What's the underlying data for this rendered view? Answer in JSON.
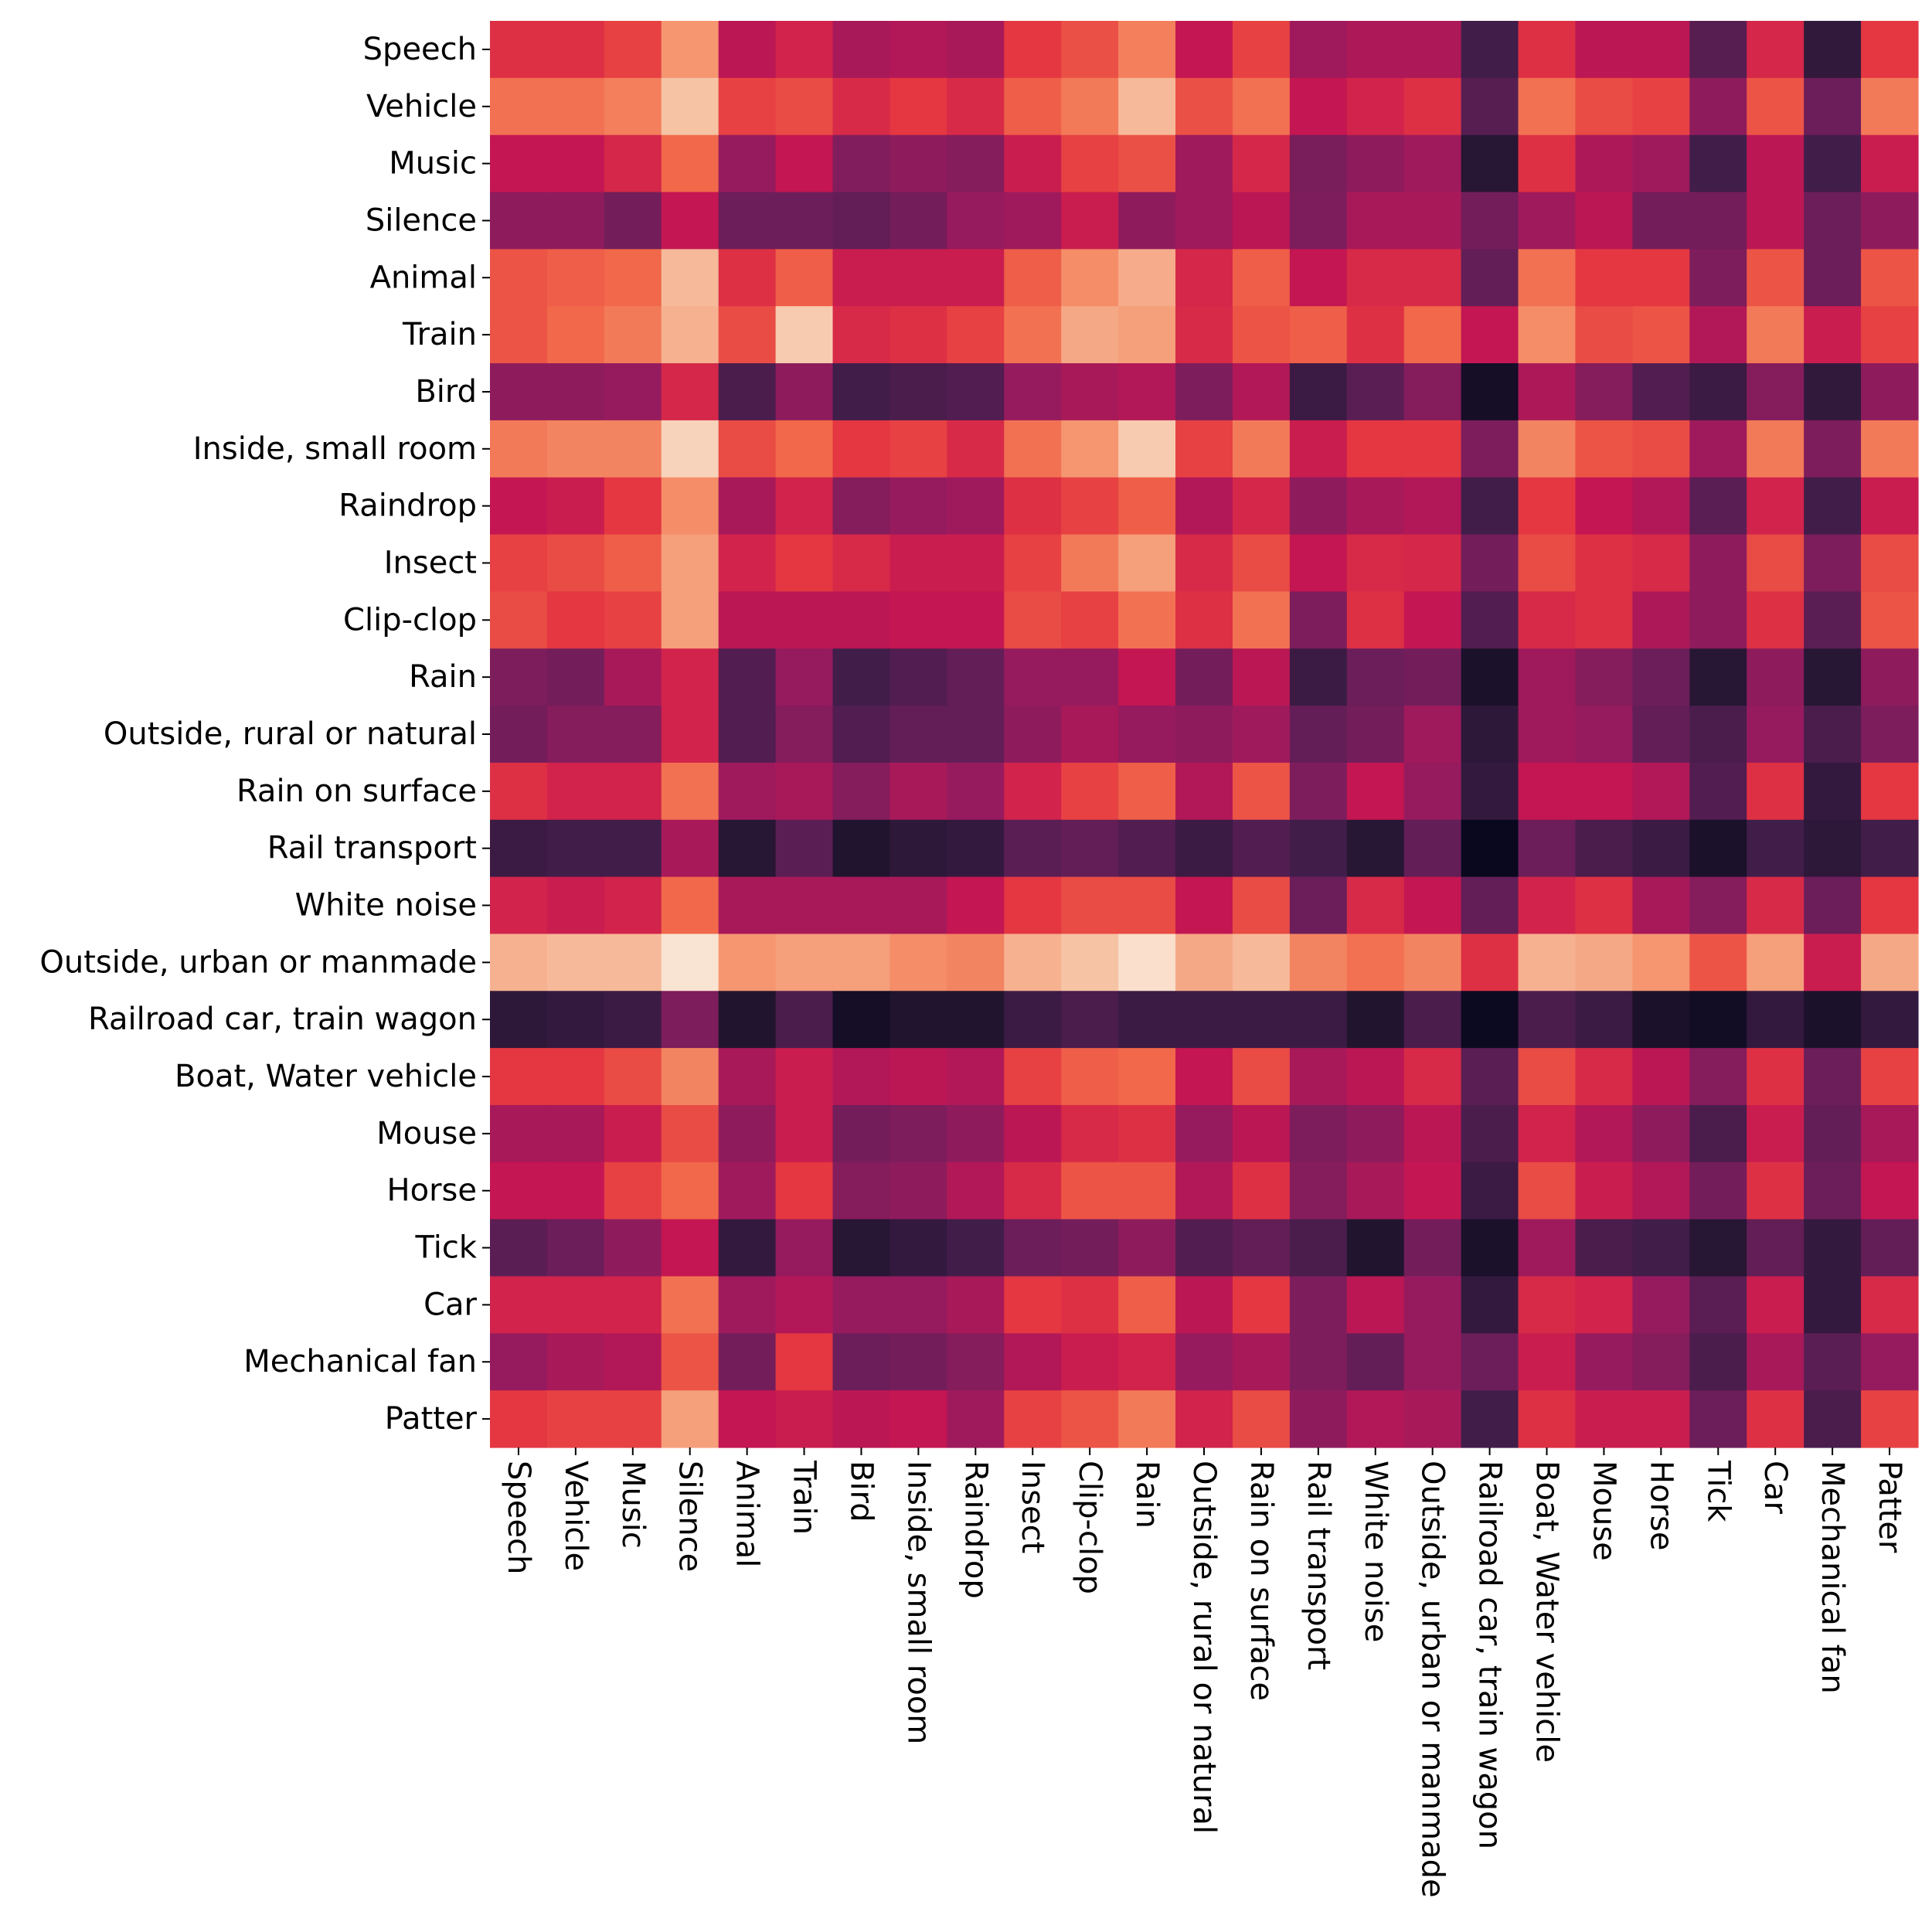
{
  "chart_data": {
    "type": "heatmap",
    "title": "",
    "xlabel": "",
    "ylabel": "",
    "colormap": "rocket",
    "colorbar": false,
    "vmin": 0,
    "vmax": 1,
    "labels": [
      "Speech",
      "Vehicle",
      "Music",
      "Silence",
      "Animal",
      "Train",
      "Bird",
      "Inside, small room",
      "Raindrop",
      "Insect",
      "Clip-clop",
      "Rain",
      "Outside, rural or natural",
      "Rain on surface",
      "Rail transport",
      "White noise",
      "Outside, urban or manmade",
      "Railroad car, train wagon",
      "Boat, Water vehicle",
      "Mouse",
      "Horse",
      "Tick",
      "Car",
      "Mechanical fan",
      "Patter"
    ],
    "values": [
      [
        0.58,
        0.58,
        0.62,
        0.8,
        0.48,
        0.54,
        0.44,
        0.46,
        0.44,
        0.6,
        0.65,
        0.75,
        0.5,
        0.62,
        0.42,
        0.45,
        0.45,
        0.2,
        0.58,
        0.48,
        0.48,
        0.25,
        0.55,
        0.15,
        0.6
      ],
      [
        0.72,
        0.72,
        0.75,
        0.9,
        0.62,
        0.64,
        0.56,
        0.6,
        0.56,
        0.68,
        0.74,
        0.88,
        0.65,
        0.72,
        0.5,
        0.54,
        0.58,
        0.25,
        0.72,
        0.64,
        0.62,
        0.38,
        0.66,
        0.3,
        0.74
      ],
      [
        0.5,
        0.5,
        0.55,
        0.7,
        0.4,
        0.5,
        0.35,
        0.38,
        0.36,
        0.52,
        0.62,
        0.65,
        0.42,
        0.55,
        0.33,
        0.38,
        0.42,
        0.12,
        0.58,
        0.45,
        0.42,
        0.2,
        0.48,
        0.2,
        0.52
      ],
      [
        0.38,
        0.38,
        0.32,
        0.5,
        0.3,
        0.3,
        0.28,
        0.32,
        0.4,
        0.42,
        0.52,
        0.38,
        0.42,
        0.48,
        0.34,
        0.44,
        0.44,
        0.32,
        0.42,
        0.48,
        0.32,
        0.32,
        0.48,
        0.3,
        0.38
      ],
      [
        0.66,
        0.68,
        0.7,
        0.88,
        0.58,
        0.68,
        0.52,
        0.52,
        0.52,
        0.68,
        0.78,
        0.85,
        0.55,
        0.68,
        0.5,
        0.56,
        0.56,
        0.28,
        0.72,
        0.6,
        0.6,
        0.34,
        0.66,
        0.3,
        0.66
      ],
      [
        0.66,
        0.7,
        0.74,
        0.86,
        0.64,
        0.92,
        0.56,
        0.58,
        0.62,
        0.72,
        0.84,
        0.82,
        0.56,
        0.66,
        0.68,
        0.58,
        0.7,
        0.5,
        0.78,
        0.64,
        0.66,
        0.46,
        0.74,
        0.52,
        0.62
      ],
      [
        0.38,
        0.38,
        0.4,
        0.55,
        0.22,
        0.38,
        0.2,
        0.22,
        0.24,
        0.4,
        0.44,
        0.46,
        0.34,
        0.46,
        0.18,
        0.26,
        0.36,
        0.06,
        0.45,
        0.36,
        0.24,
        0.18,
        0.36,
        0.15,
        0.38
      ],
      [
        0.74,
        0.76,
        0.76,
        0.94,
        0.64,
        0.7,
        0.6,
        0.62,
        0.56,
        0.72,
        0.8,
        0.92,
        0.62,
        0.74,
        0.52,
        0.6,
        0.6,
        0.34,
        0.76,
        0.66,
        0.64,
        0.42,
        0.74,
        0.34,
        0.74
      ],
      [
        0.5,
        0.52,
        0.6,
        0.78,
        0.44,
        0.54,
        0.36,
        0.4,
        0.42,
        0.58,
        0.62,
        0.68,
        0.46,
        0.55,
        0.38,
        0.44,
        0.46,
        0.2,
        0.6,
        0.5,
        0.46,
        0.26,
        0.54,
        0.2,
        0.52
      ],
      [
        0.62,
        0.64,
        0.68,
        0.82,
        0.54,
        0.6,
        0.56,
        0.52,
        0.52,
        0.62,
        0.74,
        0.82,
        0.56,
        0.64,
        0.5,
        0.56,
        0.55,
        0.32,
        0.64,
        0.58,
        0.56,
        0.38,
        0.64,
        0.34,
        0.64
      ],
      [
        0.64,
        0.6,
        0.62,
        0.82,
        0.48,
        0.48,
        0.48,
        0.5,
        0.5,
        0.64,
        0.62,
        0.72,
        0.58,
        0.72,
        0.34,
        0.58,
        0.5,
        0.24,
        0.56,
        0.58,
        0.45,
        0.38,
        0.58,
        0.26,
        0.66
      ],
      [
        0.34,
        0.32,
        0.44,
        0.54,
        0.24,
        0.4,
        0.2,
        0.24,
        0.28,
        0.4,
        0.4,
        0.5,
        0.32,
        0.48,
        0.18,
        0.3,
        0.32,
        0.08,
        0.42,
        0.36,
        0.3,
        0.12,
        0.38,
        0.12,
        0.38
      ],
      [
        0.32,
        0.36,
        0.36,
        0.54,
        0.24,
        0.36,
        0.24,
        0.28,
        0.28,
        0.38,
        0.44,
        0.4,
        0.38,
        0.42,
        0.28,
        0.32,
        0.42,
        0.14,
        0.42,
        0.4,
        0.28,
        0.22,
        0.4,
        0.22,
        0.34
      ],
      [
        0.58,
        0.54,
        0.54,
        0.72,
        0.42,
        0.44,
        0.36,
        0.44,
        0.4,
        0.54,
        0.62,
        0.68,
        0.46,
        0.66,
        0.34,
        0.5,
        0.4,
        0.16,
        0.5,
        0.5,
        0.46,
        0.24,
        0.58,
        0.16,
        0.6
      ],
      [
        0.18,
        0.2,
        0.2,
        0.44,
        0.12,
        0.26,
        0.1,
        0.14,
        0.16,
        0.26,
        0.28,
        0.24,
        0.18,
        0.24,
        0.2,
        0.12,
        0.28,
        0.02,
        0.3,
        0.22,
        0.18,
        0.08,
        0.2,
        0.14,
        0.2
      ],
      [
        0.54,
        0.52,
        0.54,
        0.7,
        0.44,
        0.44,
        0.44,
        0.44,
        0.5,
        0.6,
        0.64,
        0.64,
        0.5,
        0.64,
        0.3,
        0.56,
        0.5,
        0.28,
        0.54,
        0.58,
        0.44,
        0.36,
        0.56,
        0.3,
        0.6
      ],
      [
        0.86,
        0.88,
        0.88,
        0.98,
        0.8,
        0.82,
        0.82,
        0.78,
        0.76,
        0.86,
        0.9,
        0.97,
        0.84,
        0.88,
        0.76,
        0.72,
        0.76,
        0.58,
        0.86,
        0.84,
        0.8,
        0.66,
        0.82,
        0.52,
        0.84
      ],
      [
        0.14,
        0.16,
        0.18,
        0.34,
        0.1,
        0.22,
        0.06,
        0.1,
        0.1,
        0.18,
        0.22,
        0.18,
        0.18,
        0.18,
        0.18,
        0.1,
        0.22,
        0.03,
        0.22,
        0.18,
        0.08,
        0.05,
        0.16,
        0.08,
        0.16
      ],
      [
        0.6,
        0.6,
        0.64,
        0.76,
        0.44,
        0.52,
        0.46,
        0.48,
        0.46,
        0.62,
        0.68,
        0.7,
        0.5,
        0.64,
        0.44,
        0.48,
        0.56,
        0.26,
        0.64,
        0.56,
        0.48,
        0.36,
        0.58,
        0.3,
        0.62
      ],
      [
        0.44,
        0.44,
        0.52,
        0.64,
        0.38,
        0.52,
        0.32,
        0.34,
        0.38,
        0.48,
        0.56,
        0.58,
        0.4,
        0.48,
        0.34,
        0.38,
        0.48,
        0.22,
        0.54,
        0.46,
        0.38,
        0.22,
        0.52,
        0.28,
        0.44
      ],
      [
        0.5,
        0.5,
        0.62,
        0.7,
        0.42,
        0.6,
        0.36,
        0.38,
        0.46,
        0.56,
        0.66,
        0.66,
        0.46,
        0.58,
        0.36,
        0.44,
        0.5,
        0.18,
        0.64,
        0.52,
        0.46,
        0.32,
        0.58,
        0.3,
        0.5
      ],
      [
        0.26,
        0.3,
        0.38,
        0.5,
        0.16,
        0.4,
        0.12,
        0.16,
        0.2,
        0.3,
        0.32,
        0.38,
        0.24,
        0.28,
        0.22,
        0.1,
        0.32,
        0.08,
        0.42,
        0.22,
        0.2,
        0.12,
        0.28,
        0.16,
        0.28
      ],
      [
        0.54,
        0.54,
        0.54,
        0.72,
        0.42,
        0.46,
        0.4,
        0.4,
        0.44,
        0.6,
        0.58,
        0.68,
        0.48,
        0.6,
        0.34,
        0.48,
        0.4,
        0.16,
        0.56,
        0.54,
        0.4,
        0.26,
        0.52,
        0.16,
        0.56
      ],
      [
        0.4,
        0.44,
        0.46,
        0.66,
        0.32,
        0.6,
        0.3,
        0.32,
        0.36,
        0.46,
        0.52,
        0.54,
        0.4,
        0.44,
        0.34,
        0.28,
        0.4,
        0.3,
        0.52,
        0.4,
        0.36,
        0.22,
        0.44,
        0.26,
        0.4
      ],
      [
        0.6,
        0.62,
        0.62,
        0.82,
        0.5,
        0.52,
        0.48,
        0.5,
        0.42,
        0.62,
        0.66,
        0.74,
        0.54,
        0.64,
        0.38,
        0.46,
        0.44,
        0.2,
        0.58,
        0.52,
        0.52,
        0.3,
        0.58,
        0.22,
        0.62
      ]
    ]
  }
}
